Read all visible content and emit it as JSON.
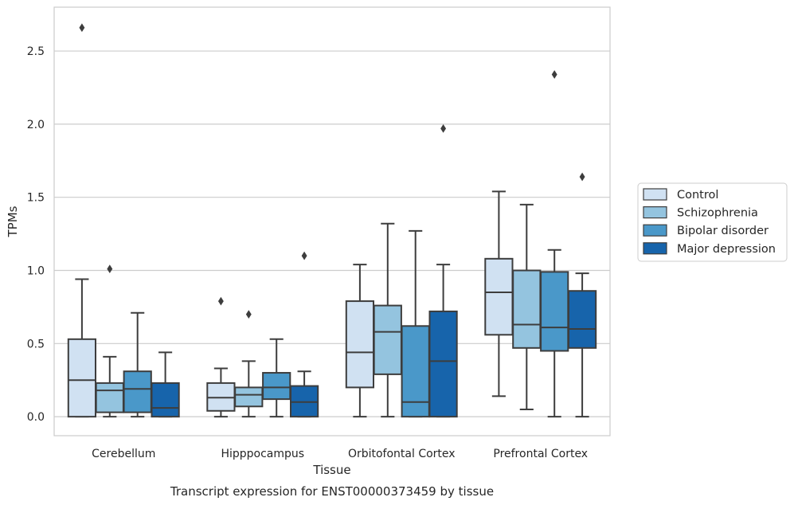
{
  "chart_data": {
    "type": "box",
    "title": "",
    "caption": "Transcript expression for ENST00000373459 by tissue",
    "xlabel": "Tissue",
    "ylabel": "TPMs",
    "ylim": [
      -0.13,
      2.8
    ],
    "yticks": [
      "0.0",
      "0.5",
      "1.0",
      "1.5",
      "2.0",
      "2.5"
    ],
    "grid": "horizontal",
    "legend_placement": "right",
    "categories": [
      "Cerebellum",
      "Hipppocampus",
      "Orbitofontal Cortex",
      "Prefrontal Cortex"
    ],
    "series": [
      {
        "name": "Control",
        "color": "#d0e1f2",
        "boxes": [
          {
            "whislo": 0.0,
            "q1": 0.0,
            "med": 0.25,
            "q3": 0.53,
            "whishi": 0.94,
            "fliers": [
              2.66
            ]
          },
          {
            "whislo": 0.0,
            "q1": 0.04,
            "med": 0.13,
            "q3": 0.23,
            "whishi": 0.33,
            "fliers": [
              0.79
            ]
          },
          {
            "whislo": 0.0,
            "q1": 0.2,
            "med": 0.44,
            "q3": 0.79,
            "whishi": 1.04,
            "fliers": []
          },
          {
            "whislo": 0.14,
            "q1": 0.56,
            "med": 0.85,
            "q3": 1.08,
            "whishi": 1.54,
            "fliers": []
          }
        ]
      },
      {
        "name": "Schizophrenia",
        "color": "#94c4df",
        "boxes": [
          {
            "whislo": 0.0,
            "q1": 0.03,
            "med": 0.18,
            "q3": 0.23,
            "whishi": 0.41,
            "fliers": [
              1.01
            ]
          },
          {
            "whislo": 0.0,
            "q1": 0.07,
            "med": 0.15,
            "q3": 0.2,
            "whishi": 0.38,
            "fliers": [
              0.7
            ]
          },
          {
            "whislo": 0.0,
            "q1": 0.29,
            "med": 0.58,
            "q3": 0.76,
            "whishi": 1.32,
            "fliers": []
          },
          {
            "whislo": 0.05,
            "q1": 0.47,
            "med": 0.63,
            "q3": 1.0,
            "whishi": 1.45,
            "fliers": []
          }
        ]
      },
      {
        "name": "Bipolar disorder",
        "color": "#4a98c9",
        "boxes": [
          {
            "whislo": 0.0,
            "q1": 0.03,
            "med": 0.19,
            "q3": 0.31,
            "whishi": 0.71,
            "fliers": []
          },
          {
            "whislo": 0.0,
            "q1": 0.12,
            "med": 0.2,
            "q3": 0.3,
            "whishi": 0.53,
            "fliers": []
          },
          {
            "whislo": 0.0,
            "q1": 0.0,
            "med": 0.1,
            "q3": 0.62,
            "whishi": 1.27,
            "fliers": []
          },
          {
            "whislo": 0.0,
            "q1": 0.45,
            "med": 0.61,
            "q3": 0.99,
            "whishi": 1.14,
            "fliers": [
              2.34
            ]
          }
        ]
      },
      {
        "name": "Major depression",
        "color": "#1764ab",
        "boxes": [
          {
            "whislo": 0.0,
            "q1": 0.0,
            "med": 0.06,
            "q3": 0.23,
            "whishi": 0.44,
            "fliers": []
          },
          {
            "whislo": 0.0,
            "q1": 0.0,
            "med": 0.1,
            "q3": 0.21,
            "whishi": 0.31,
            "fliers": [
              1.1
            ]
          },
          {
            "whislo": 0.0,
            "q1": 0.0,
            "med": 0.38,
            "q3": 0.72,
            "whishi": 1.04,
            "fliers": [
              1.97
            ]
          },
          {
            "whislo": 0.0,
            "q1": 0.47,
            "med": 0.6,
            "q3": 0.86,
            "whishi": 0.98,
            "fliers": [
              1.64
            ]
          }
        ]
      }
    ]
  }
}
